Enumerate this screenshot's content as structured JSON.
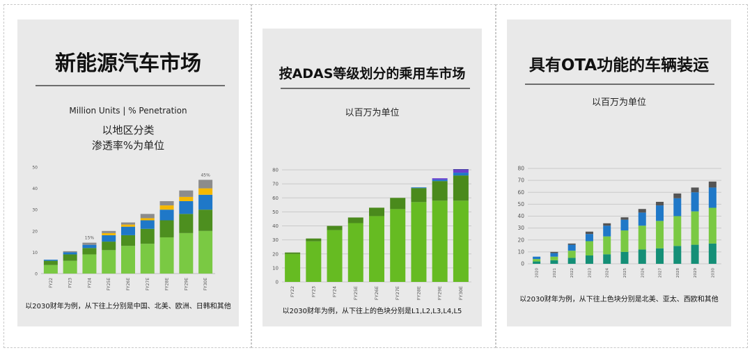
{
  "panels": [
    {
      "title": "新能源汽车市场",
      "subtitle_en": "Million Units | % Penetration",
      "subtitle_1": "以地区分类",
      "subtitle_2": "渗透率%为单位",
      "footnote": "以2030财年为例，从下往上分别是中国、北美、欧洲、日韩和其他"
    },
    {
      "title": "按ADAS等级划分的乘用车市场",
      "subtitle_1": "以百万为单位",
      "footnote": "以2030财年为例，从下往上的色块分别是L1,L2,L3,L4,L5"
    },
    {
      "title": "具有OTA功能的车辆装运",
      "subtitle_1": "以百万为单位",
      "footnote": "以2030财年为例，从下往上色块分别是北美、亚太、西欧和其他"
    }
  ],
  "chart_data": [
    {
      "type": "bar",
      "stacked": true,
      "categories": [
        "FY22",
        "FY23",
        "FY24",
        "FY25E",
        "FY26E",
        "FY27E",
        "FY28E",
        "FY29E",
        "FY30E"
      ],
      "series": [
        {
          "name": "中国",
          "color": "#7ac943",
          "values": [
            4,
            6,
            9,
            11,
            13,
            14,
            17,
            19,
            20
          ]
        },
        {
          "name": "北美",
          "color": "#4d8f1f",
          "values": [
            2,
            3,
            3,
            4,
            5,
            7,
            8,
            9,
            10
          ]
        },
        {
          "name": "欧洲",
          "color": "#1f78c8",
          "values": [
            0.5,
            1,
            1.5,
            3,
            4,
            4,
            5,
            6,
            7
          ]
        },
        {
          "name": "日韩",
          "color": "#f5b800",
          "values": [
            0,
            0,
            0,
            1,
            1,
            1,
            2,
            2,
            3
          ]
        },
        {
          "name": "其他",
          "color": "#8c8c8c",
          "values": [
            0,
            0.5,
            1,
            1,
            1,
            2,
            2,
            3,
            4
          ]
        }
      ],
      "annotations": [
        {
          "category": "FY24",
          "text": "15%"
        },
        {
          "category": "FY30E",
          "text": "45%"
        }
      ],
      "ylim": [
        0,
        50
      ],
      "yticks": [
        0,
        10,
        20,
        30,
        40,
        50
      ],
      "grid": false
    },
    {
      "type": "bar",
      "stacked": true,
      "categories": [
        "FY22",
        "FY23",
        "FY24",
        "FY25E",
        "FY26E",
        "FY27E",
        "FY28E",
        "FY29E",
        "FY30E"
      ],
      "series": [
        {
          "name": "L1",
          "color": "#66bb22",
          "values": [
            20,
            29,
            37,
            42,
            47,
            52,
            57,
            58,
            58
          ]
        },
        {
          "name": "L2",
          "color": "#4a8a1c",
          "values": [
            1,
            2,
            3,
            4,
            6,
            8,
            10,
            14,
            18
          ]
        },
        {
          "name": "L3",
          "color": "#1f78c8",
          "values": [
            0,
            0,
            0,
            0,
            0,
            0,
            0.5,
            1,
            2
          ]
        },
        {
          "name": "L4",
          "color": "#6a3fcf",
          "values": [
            0,
            0,
            0,
            0,
            0,
            0,
            0,
            1,
            2
          ]
        },
        {
          "name": "L5",
          "color": "#3b2fa0",
          "values": [
            0,
            0,
            0,
            0,
            0,
            0,
            0,
            0,
            0.5
          ]
        }
      ],
      "ylim": [
        0,
        85
      ],
      "yticks": [
        0,
        10,
        20,
        30,
        40,
        50,
        60,
        70,
        80
      ],
      "grid": true
    },
    {
      "type": "bar",
      "stacked": true,
      "categories": [
        "2020",
        "2021",
        "2022",
        "2023",
        "2024",
        "2025",
        "2026",
        "2027",
        "2028",
        "2029",
        "2030"
      ],
      "series": [
        {
          "name": "北美",
          "color": "#148f77",
          "values": [
            2,
            3,
            5,
            7,
            8,
            10,
            12,
            13,
            15,
            16,
            17
          ]
        },
        {
          "name": "亚太",
          "color": "#7ac943",
          "values": [
            2,
            3,
            6,
            12,
            15,
            18,
            20,
            23,
            25,
            28,
            30
          ]
        },
        {
          "name": "西欧",
          "color": "#1f78c8",
          "values": [
            2,
            3,
            5,
            6,
            9,
            9,
            11,
            13,
            15,
            16,
            17
          ]
        },
        {
          "name": "其他",
          "color": "#555555",
          "values": [
            0,
            1,
            1,
            2,
            2,
            2,
            3,
            3,
            4,
            4,
            5
          ]
        }
      ],
      "ylim": [
        0,
        80
      ],
      "yticks": [
        0,
        10,
        20,
        30,
        40,
        50,
        60,
        70,
        80
      ],
      "grid": true
    }
  ]
}
